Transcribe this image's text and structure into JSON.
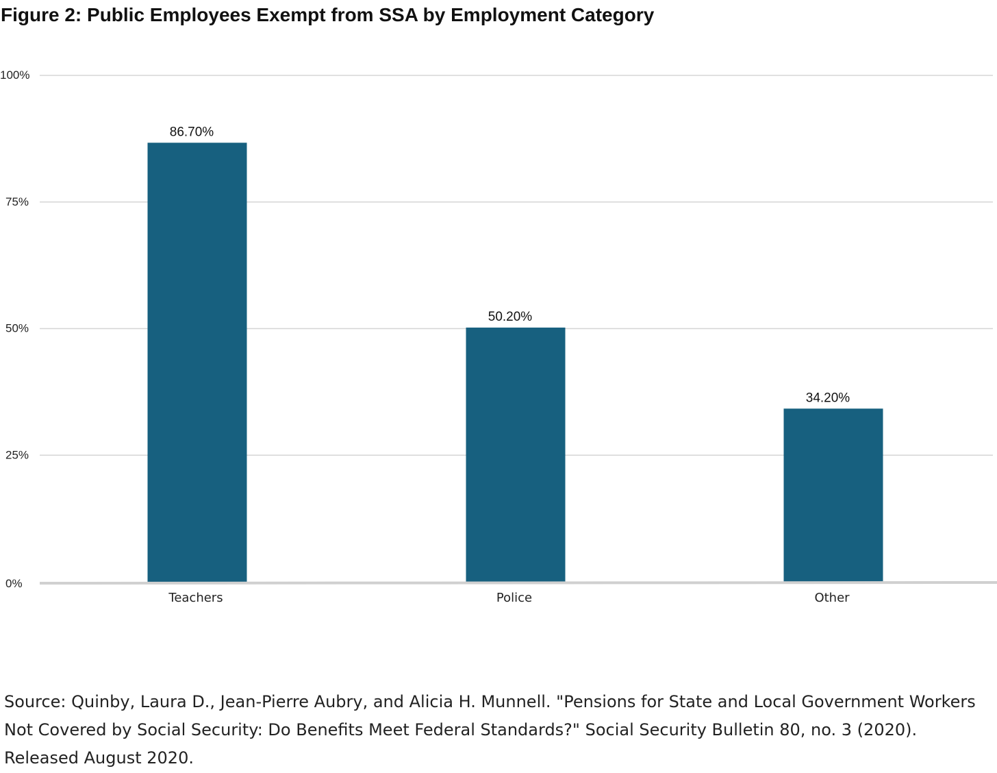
{
  "title": "Figure 2: Public Employees Exempt from SSA by Employment Category",
  "source": "Source: Quinby, Laura D., Jean-Pierre Aubry, and Alicia H. Munnell. \"Pensions for State and Local Government Workers Not Covered by Social Security: Do Benefits Meet Federal Standards?\" Social Security Bulletin 80, no. 3 (2020). Released August 2020.",
  "colors": {
    "bar": "#17607f",
    "gridline": "#d5d5d5",
    "baseline": "#d0d0d0"
  },
  "chart_data": {
    "type": "bar",
    "categories": [
      "Teachers",
      "Police",
      "Other"
    ],
    "values": [
      86.7,
      50.2,
      34.2
    ],
    "data_labels": [
      "86.70%",
      "50.20%",
      "34.20%"
    ],
    "title": "Figure 2: Public Employees Exempt from SSA by Employment Category",
    "xlabel": "",
    "ylabel": "",
    "ylim": [
      0,
      100
    ],
    "yticks": [
      0,
      25,
      50,
      75,
      100
    ],
    "ytick_labels": [
      "0%",
      "25%",
      "50%",
      "75%",
      "100%"
    ],
    "grid": true,
    "legend": "none"
  }
}
